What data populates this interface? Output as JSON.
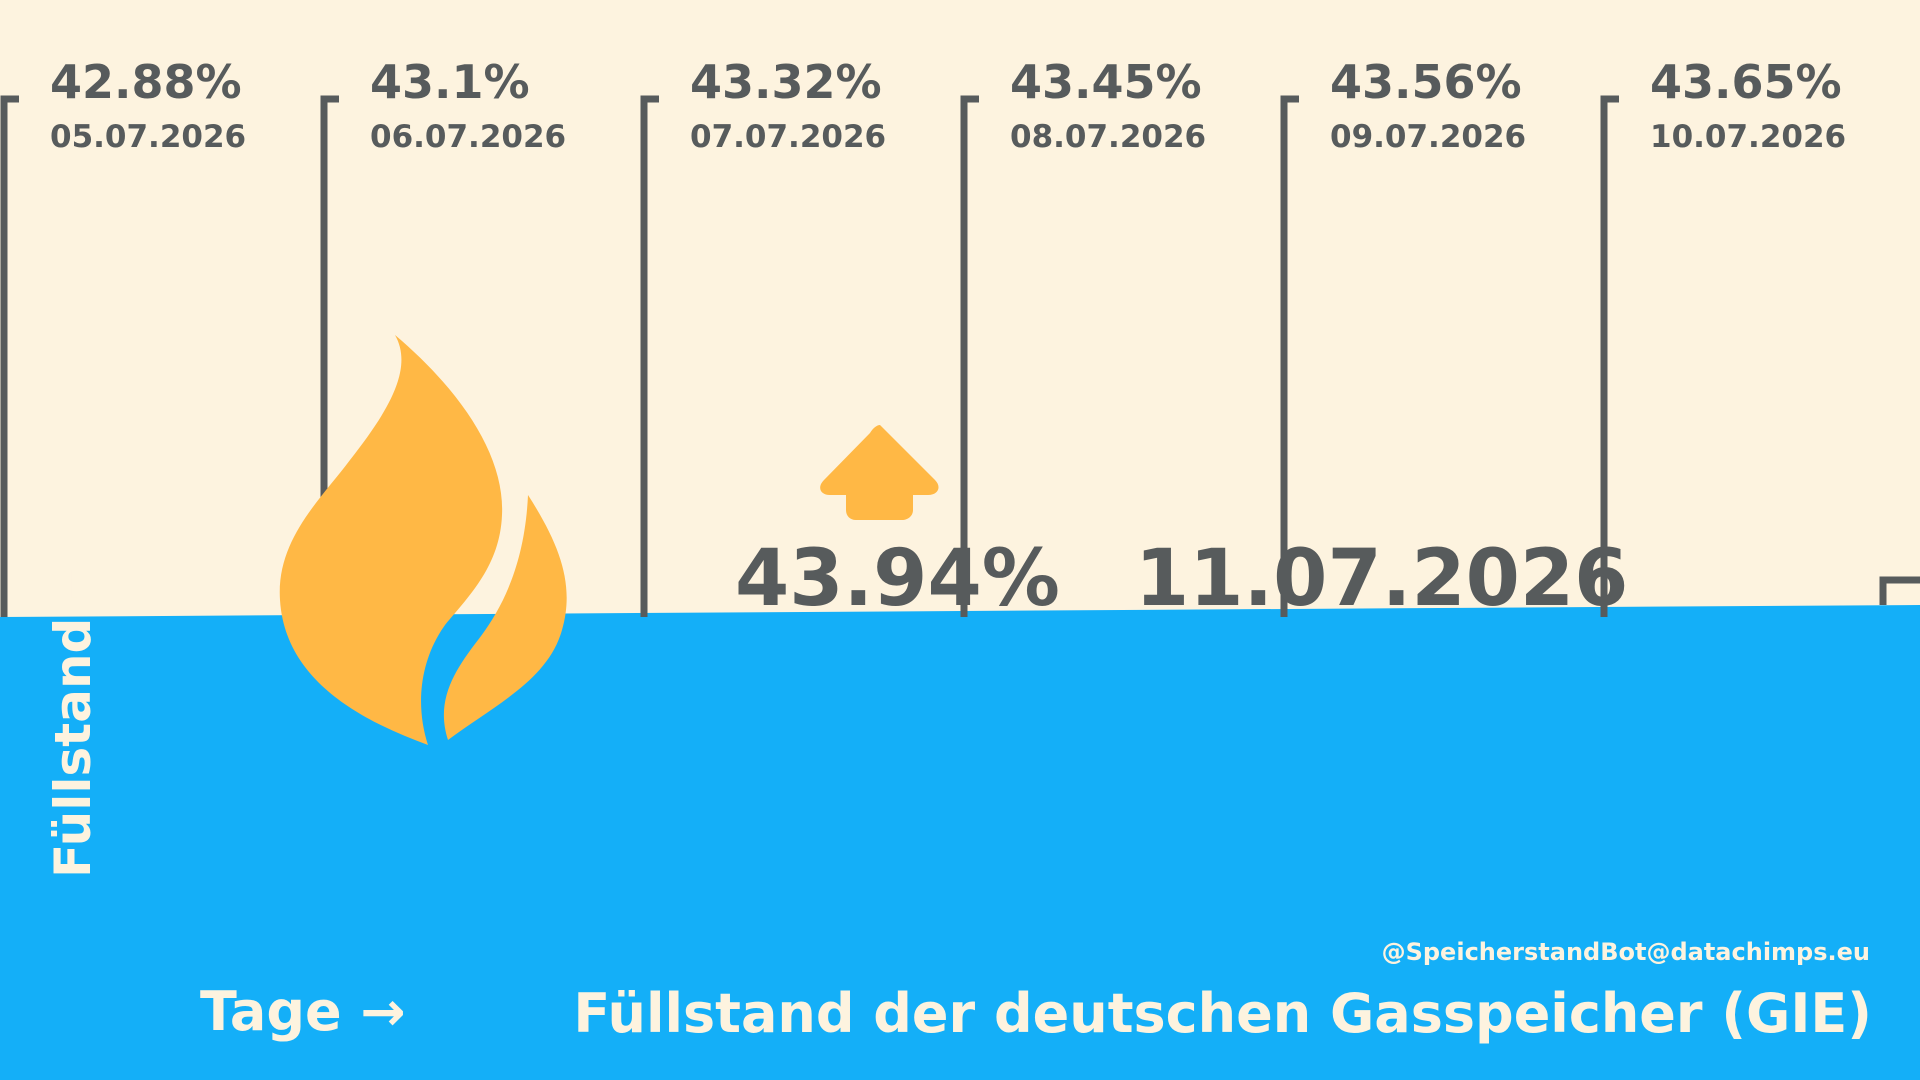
{
  "chart_data": {
    "type": "line",
    "title": "Füllstand der deutschen Gasspeicher (GIE)",
    "xlabel": "Tage →",
    "ylabel": "Füllstand →",
    "source_handle": "@SpeicherstandBot@datachimps.eu",
    "x": [
      "05.07.2026",
      "06.07.2026",
      "07.07.2026",
      "08.07.2026",
      "09.07.2026",
      "10.07.2026",
      "11.07.2026"
    ],
    "values": [
      42.88,
      43.1,
      43.32,
      43.45,
      43.56,
      43.65,
      43.94
    ],
    "value_labels": [
      "42.88%",
      "43.1%",
      "43.32%",
      "43.45%",
      "43.56%",
      "43.65%",
      "43.94%"
    ],
    "latest": {
      "value_label": "43.94%",
      "date": "11.07.2026"
    },
    "trend": "up",
    "grid": false,
    "legend": "none"
  },
  "colors": {
    "background": "#fdf3df",
    "fill": "#14aff8",
    "marker": "#575b5c",
    "accent": "#ffb845",
    "light_text": "#fdf3df"
  },
  "icons": {
    "flame": "flame-icon",
    "trend": "arrow-up-icon"
  }
}
